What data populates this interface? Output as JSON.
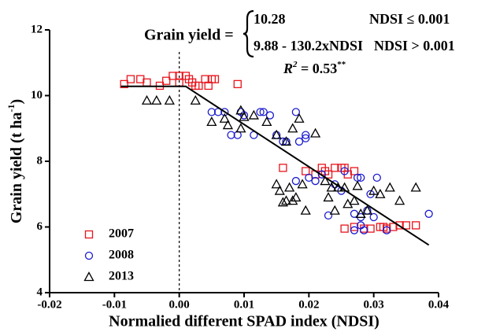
{
  "chart_data": {
    "type": "scatter",
    "equation": {
      "lhs": "Grain yield =",
      "case1": "10.28",
      "cond1": "NDSI ≤ 0.001",
      "case2": "9.88 - 130.2xNDSI",
      "cond2": "NDSI > 0.001"
    },
    "r2": {
      "symbol": "R",
      "exponent": "2",
      "value": " = 0.53",
      "significance": "**"
    },
    "x_label": "Normalied different SPAD index (NDSI)",
    "y_label": {
      "text": "Grain yield (t ha",
      "exponent": "-1",
      "close": ")"
    },
    "xlim": [
      -0.02,
      0.04
    ],
    "xticks": [
      -0.02,
      -0.01,
      {
        "value": 0,
        "label": "0.00"
      },
      0.01,
      0.02,
      0.03,
      0.04
    ],
    "ylim": [
      4,
      12
    ],
    "yticks": [
      4,
      6,
      8,
      10,
      12
    ],
    "reference_x": 0,
    "fit_line": {
      "x": [
        -0.009,
        0.001,
        0.0385
      ],
      "y": [
        10.28,
        10.28,
        5.45
      ],
      "color": "#000000"
    },
    "series": [
      {
        "name": "2007",
        "color": "#e8141c",
        "marker": "square",
        "x": [
          -0.0085,
          -0.0075,
          -0.006,
          -0.005,
          -0.003,
          -0.002,
          -0.001,
          0.0,
          0.0,
          0.001,
          0.0015,
          0.002,
          0.0025,
          0.003,
          0.004,
          0.005,
          0.0055,
          0.009,
          0.0045,
          0.016,
          0.0195,
          0.021,
          0.022,
          0.0225,
          0.023,
          0.024,
          0.025,
          0.0255,
          0.026,
          0.027,
          0.0255,
          0.027,
          0.0285,
          0.0295,
          0.031,
          0.032,
          0.033,
          0.034,
          0.035,
          0.0365,
          0.0315
        ],
        "values": [
          10.35,
          10.5,
          10.5,
          10.4,
          10.3,
          10.45,
          10.6,
          10.4,
          10.6,
          10.6,
          10.5,
          10.4,
          10.3,
          10.3,
          10.5,
          10.5,
          10.5,
          10.35,
          10.3,
          7.8,
          7.7,
          7.6,
          7.8,
          7.7,
          7.6,
          7.8,
          7.8,
          7.8,
          7.6,
          7.7,
          5.95,
          6.0,
          5.95,
          5.95,
          6.0,
          5.95,
          6.0,
          6.05,
          6.05,
          6.05,
          6.0
        ]
      },
      {
        "name": "2008",
        "color": "#1a1ad0",
        "marker": "circle",
        "x": [
          0.005,
          0.006,
          0.007,
          0.008,
          0.009,
          0.0095,
          0.01,
          0.0115,
          0.0125,
          0.013,
          0.014,
          0.015,
          0.016,
          0.0165,
          0.018,
          0.0185,
          0.0195,
          0.0195,
          0.018,
          0.02,
          0.021,
          0.022,
          0.023,
          0.024,
          0.025,
          0.0255,
          0.027,
          0.0275,
          0.028,
          0.028,
          0.0285,
          0.029,
          0.0295,
          0.03,
          0.0305,
          0.032,
          0.0385,
          0.027,
          0.028
        ],
        "values": [
          9.5,
          9.5,
          9.5,
          8.8,
          8.8,
          9.5,
          9.4,
          8.8,
          9.5,
          9.5,
          9.4,
          8.8,
          8.6,
          8.6,
          9.5,
          8.6,
          8.8,
          8.7,
          7.4,
          7.5,
          7.4,
          7.6,
          6.35,
          7.3,
          7.1,
          7.7,
          6.4,
          7.5,
          7.5,
          6.3,
          5.9,
          6.5,
          7.0,
          6.3,
          7.5,
          5.9,
          6.4,
          5.9,
          6.05
        ]
      },
      {
        "name": "2013",
        "color": "#000000",
        "marker": "triangle",
        "x": [
          -0.005,
          -0.0035,
          -0.0015,
          0.0025,
          0.005,
          0.007,
          0.0075,
          0.0095,
          0.01,
          0.0115,
          0.0135,
          0.015,
          0.0165,
          0.0175,
          0.0185,
          0.021,
          0.015,
          0.0155,
          0.016,
          0.0165,
          0.017,
          0.0175,
          0.018,
          0.019,
          0.0195,
          0.0225,
          0.023,
          0.0235,
          0.024,
          0.0245,
          0.0255,
          0.026,
          0.027,
          0.0275,
          0.028,
          0.029,
          0.03,
          0.031,
          0.0325,
          0.034,
          0.0365,
          0.0095
        ],
        "values": [
          9.85,
          9.85,
          9.85,
          9.85,
          9.2,
          9.3,
          9.1,
          9.0,
          9.35,
          9.4,
          9.2,
          8.8,
          8.6,
          9.0,
          9.3,
          8.85,
          7.3,
          7.1,
          6.75,
          6.8,
          7.2,
          6.8,
          6.9,
          7.3,
          6.5,
          7.4,
          6.9,
          7.2,
          6.5,
          7.2,
          7.2,
          6.7,
          6.8,
          7.25,
          6.4,
          6.5,
          7.1,
          7.0,
          7.2,
          6.8,
          7.2,
          9.55
        ]
      }
    ]
  }
}
